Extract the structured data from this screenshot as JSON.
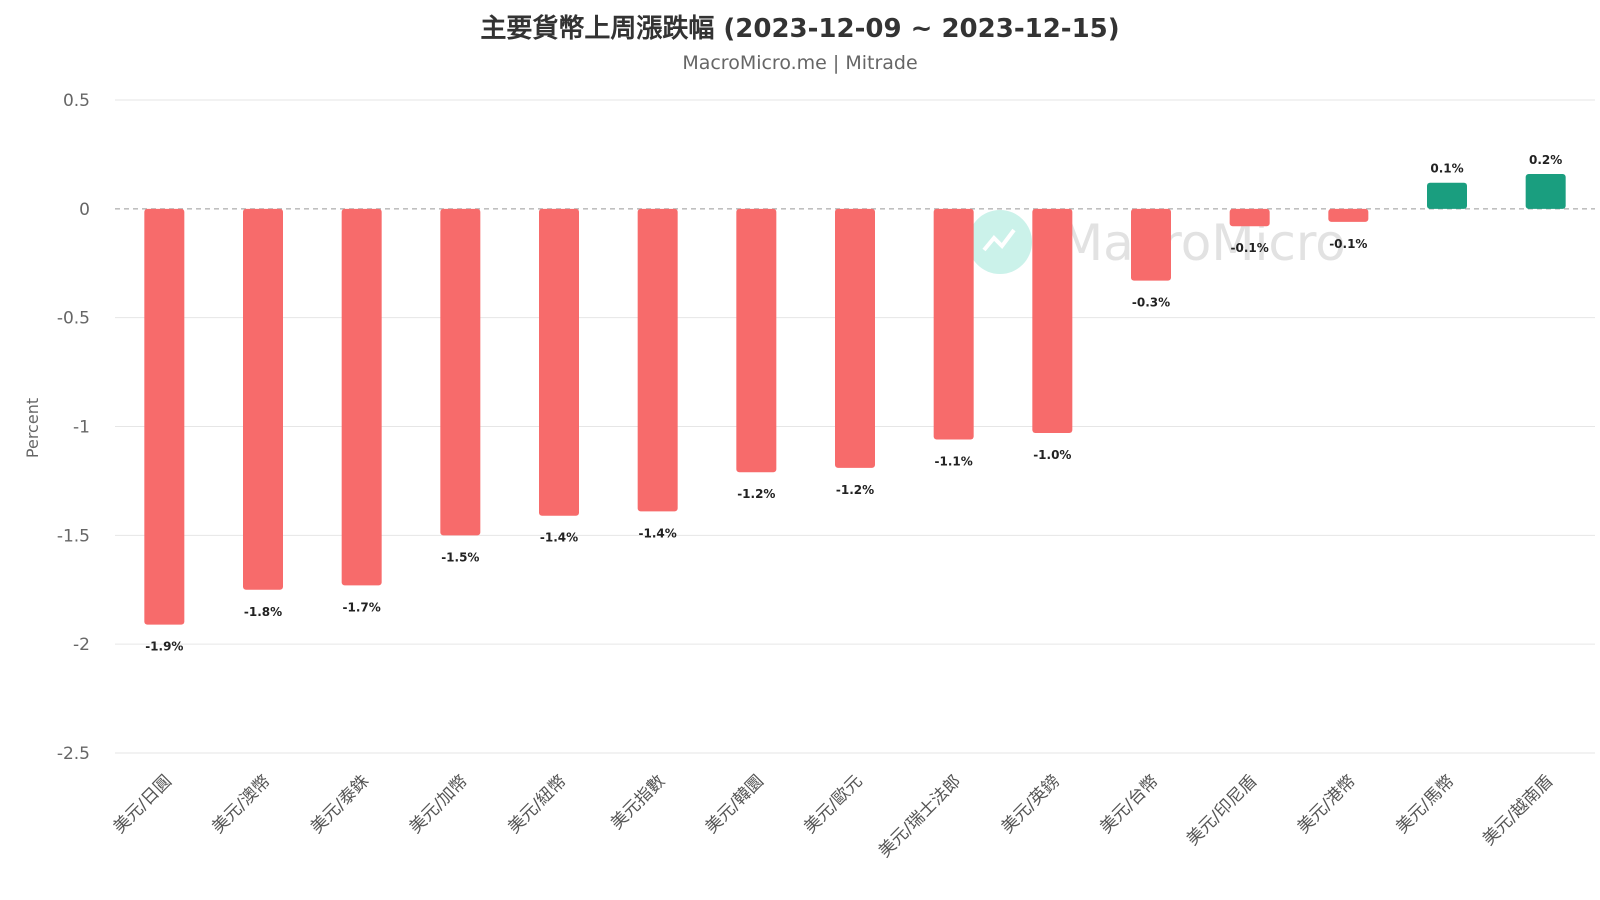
{
  "chart_data": {
    "type": "bar",
    "title": "主要貨幣上周漲跌幅 (2023-12-09 ~ 2023-12-15)",
    "subtitle": "MacroMicro.me | Mitrade",
    "xlabel": "",
    "ylabel": "Percent",
    "ylim": [
      -2.5,
      0.5
    ],
    "yticks": [
      0.5,
      0,
      -0.5,
      -1,
      -1.5,
      -2,
      -2.5
    ],
    "ytick_labels": [
      "0.5",
      "0",
      "-0.5",
      "-1",
      "-1.5",
      "-2",
      "-2.5"
    ],
    "categories": [
      "美元/日圓",
      "美元/澳幣",
      "美元/泰銖",
      "美元/加幣",
      "美元/紐幣",
      "美元指數",
      "美元/韓圜",
      "美元/歐元",
      "美元/瑞士法郎",
      "美元/英鎊",
      "美元/台幣",
      "美元/印尼盾",
      "美元/港幣",
      "美元/馬幣",
      "美元/越南盾"
    ],
    "values": [
      -1.91,
      -1.75,
      -1.73,
      -1.5,
      -1.41,
      -1.39,
      -1.21,
      -1.19,
      -1.06,
      -1.03,
      -0.33,
      -0.08,
      -0.06,
      0.12,
      0.16
    ],
    "data_labels": [
      "-1.9%",
      "-1.8%",
      "-1.7%",
      "-1.5%",
      "-1.4%",
      "-1.4%",
      "-1.2%",
      "-1.2%",
      "-1.1%",
      "-1.0%",
      "-0.3%",
      "-0.1%",
      "-0.1%",
      "0.1%",
      "0.2%"
    ],
    "colors": {
      "negative": "#f76b6b",
      "positive": "#1a9e7f",
      "grid": "#e6e6e6",
      "zero_line": "#999999"
    },
    "grid": true,
    "legend": "none",
    "watermark": "MacroMicro"
  }
}
